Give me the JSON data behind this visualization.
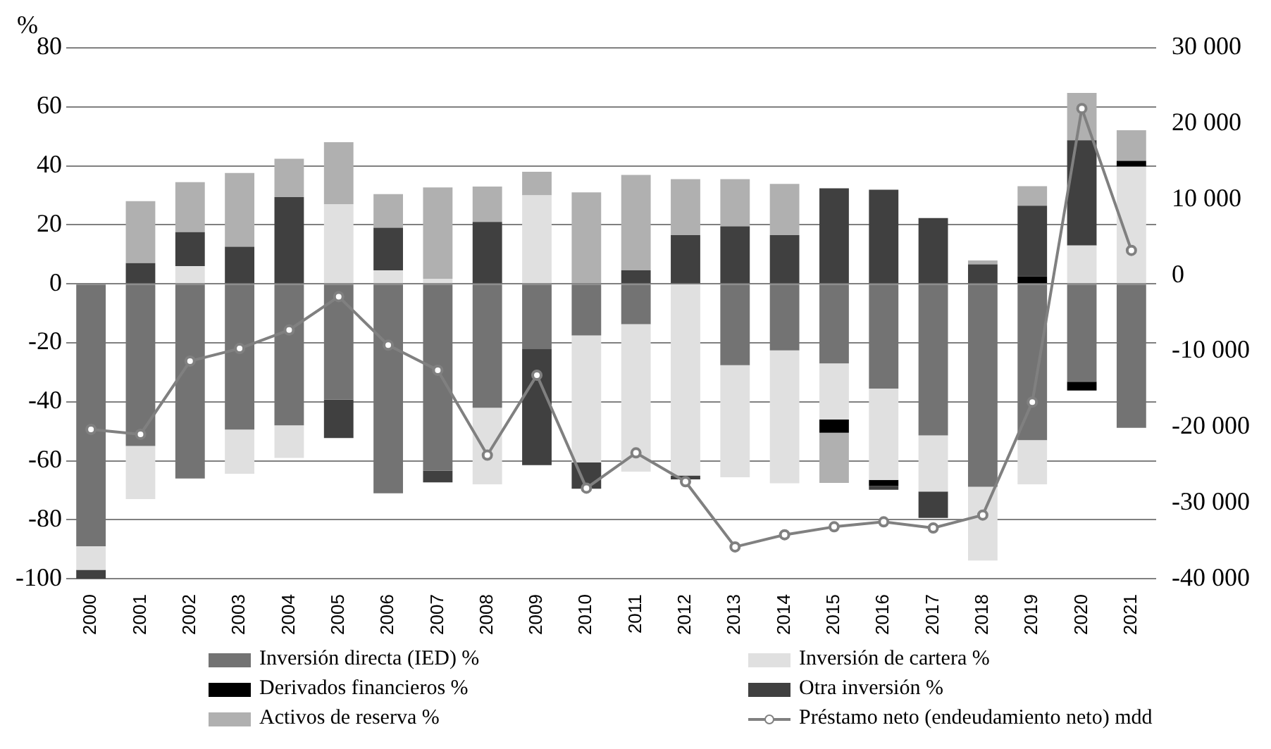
{
  "chart_data": {
    "type": "bar",
    "stacked": true,
    "ylabel": "%",
    "categories": [
      "2000",
      "2001",
      "2002",
      "2003",
      "2004",
      "2005",
      "2006",
      "2007",
      "2008",
      "2009",
      "2010",
      "2011",
      "2012",
      "2013",
      "2014",
      "2015",
      "2016",
      "2017",
      "2018",
      "2019",
      "2020",
      "2021"
    ],
    "series": [
      {
        "name": "Inversión directa (IED) %",
        "color": "#737373",
        "values": [
          -89,
          -55,
          -66,
          -49.4,
          -48,
          -39.3,
          -71,
          -63.3,
          -42,
          -22,
          -17.5,
          -13.7,
          null,
          -27.6,
          -22.6,
          -27,
          -35.5,
          -51.4,
          -68.8,
          -53,
          -33.2,
          -48.8
        ]
      },
      {
        "name": "Inversión de cartera %",
        "color": "#e0e0e0",
        "values": [
          -8,
          -18,
          6,
          -15,
          -11,
          27,
          4.6,
          1.7,
          -26,
          30,
          -43,
          -50,
          -65,
          -38,
          -45,
          -19,
          -31,
          -19,
          -25,
          -15,
          13,
          39.7
        ]
      },
      {
        "name": "Derivados financieros %",
        "color": "#000000",
        "values": [
          null,
          null,
          null,
          null,
          null,
          null,
          null,
          null,
          null,
          null,
          null,
          null,
          null,
          null,
          null,
          -4.5,
          -2,
          null,
          null,
          2.5,
          -3,
          2
        ]
      },
      {
        "name": "Otra inversión %",
        "color": "#404040",
        "values": [
          -3,
          7,
          11.5,
          12.6,
          29.4,
          -13,
          14.4,
          -4,
          21,
          -39.5,
          -9,
          4.6,
          16.5,
          19.5,
          16.5,
          32.4,
          31.9,
          22.3,
          6.6,
          24,
          35.7,
          null
        ]
      },
      {
        "name": "Activos de reserva %",
        "color": "#b0b0b0",
        "values": [
          null,
          21,
          17,
          25,
          13,
          21,
          11.4,
          31,
          12,
          8,
          31,
          32.3,
          19,
          16,
          17.4,
          -17,
          null,
          null,
          1.3,
          6.6,
          16,
          10.4
        ]
      },
      {
        "color": "#404040",
        "values": [
          null,
          null,
          null,
          null,
          null,
          null,
          null,
          null,
          null,
          null,
          null,
          null,
          -1.3,
          null,
          null,
          null,
          -1.3,
          -9,
          null,
          null,
          null,
          null
        ]
      },
      {
        "name": "Préstamo neto (endeudamiento neto) mdd",
        "type": "line",
        "axis": "y2",
        "color": "#808080",
        "marker": "circle",
        "values": [
          -20300,
          -20950,
          -11300,
          -9640,
          -7200,
          -2800,
          -9200,
          -12500,
          -23700,
          -13150,
          -28050,
          -23400,
          -27200,
          -35800,
          -34200,
          -33150,
          -32500,
          -33300,
          -31600,
          -16700,
          22000,
          3300
        ]
      }
    ],
    "ylim": [
      -100,
      80
    ],
    "yticks": [
      -100,
      -80,
      -60,
      -40,
      -20,
      0,
      20,
      40,
      60,
      80
    ],
    "y2lim": [
      -40000,
      30000
    ],
    "y2ticks": [
      {
        "value": -40000,
        "label": "-40 000"
      },
      {
        "value": -30000,
        "label": "-30 000"
      },
      {
        "value": -20000,
        "label": "-20 000"
      },
      {
        "value": -10000,
        "label": "-10 000"
      },
      {
        "value": 0,
        "label": "0"
      },
      {
        "value": 10000,
        "label": "10 000"
      },
      {
        "value": 20000,
        "label": "20 000"
      },
      {
        "value": 30000,
        "label": "30 000"
      }
    ],
    "grid": "y",
    "legend": "bottom"
  }
}
